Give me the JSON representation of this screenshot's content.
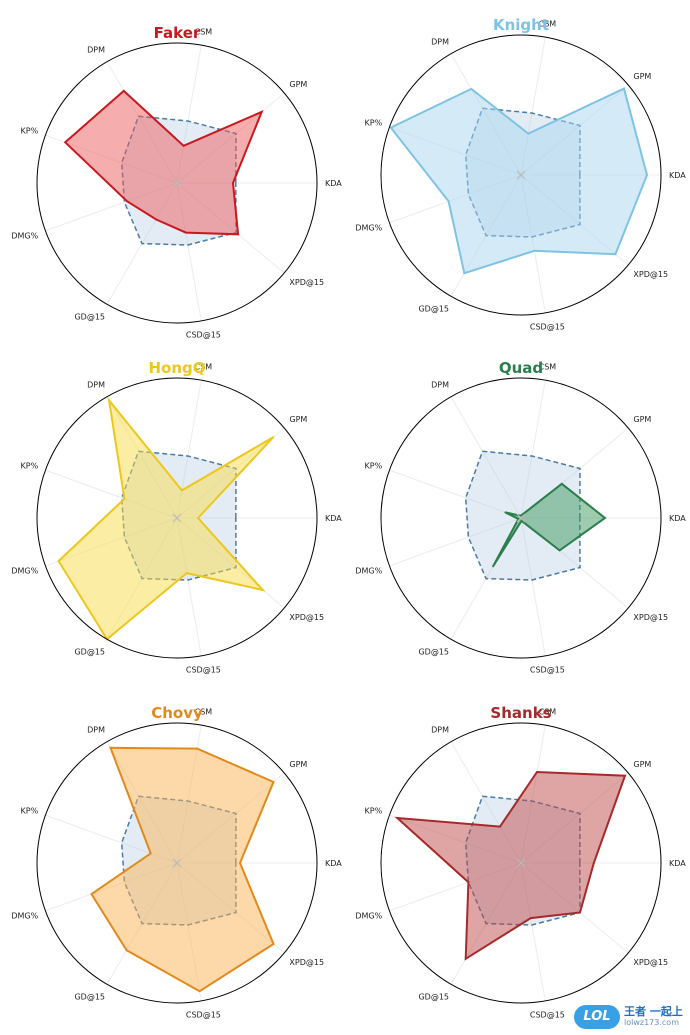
{
  "chart_data": {
    "type": "radar",
    "axes": [
      "KDA",
      "GPM",
      "CSM",
      "DPM",
      "KP%",
      "DMG%",
      "GD@15",
      "CSD@15",
      "XPD@15"
    ],
    "range": [
      0,
      1
    ],
    "reference_series": {
      "name": "average",
      "style": "dashed",
      "color": "#4a7ba6",
      "values": [
        0.42,
        0.55,
        0.45,
        0.55,
        0.42,
        0.4,
        0.5,
        0.45,
        0.55
      ]
    },
    "charts": [
      {
        "title": "Faker",
        "color": "#c8191f",
        "fill": "#ee5c5c",
        "values": [
          0.4,
          0.79,
          0.27,
          0.76,
          0.85,
          0.38,
          0.3,
          0.36,
          0.57
        ]
      },
      {
        "title": "Knight",
        "color": "#7ec3e3",
        "fill": "#aad6f0",
        "values": [
          0.9,
          0.96,
          0.3,
          0.71,
          0.99,
          0.55,
          0.81,
          0.55,
          0.88
        ]
      },
      {
        "title": "HongQ",
        "color": "#ecc71e",
        "fill": "#f9dc4a",
        "values": [
          0.15,
          0.9,
          0.2,
          0.97,
          0.4,
          0.9,
          1.0,
          0.4,
          0.8
        ]
      },
      {
        "title": "Quad",
        "color": "#2a7e4b",
        "fill": "#3f9a5f",
        "values": [
          0.6,
          0.38,
          0.02,
          0.02,
          0.12,
          0.02,
          0.4,
          0.02,
          0.36
        ]
      },
      {
        "title": "Chovy",
        "color": "#e08a1c",
        "fill": "#fbb454",
        "values": [
          0.45,
          0.9,
          0.83,
          0.95,
          0.2,
          0.65,
          0.72,
          0.93,
          0.9
        ]
      },
      {
        "title": "Shanks",
        "color": "#a52a2a",
        "fill": "#c04a4a",
        "values": [
          0.52,
          0.97,
          0.66,
          0.3,
          0.94,
          0.4,
          0.79,
          0.4,
          0.55
        ]
      }
    ]
  },
  "watermark": {
    "logo": "LOL",
    "name": "王者 一起上",
    "url": "lolwz173.com"
  }
}
